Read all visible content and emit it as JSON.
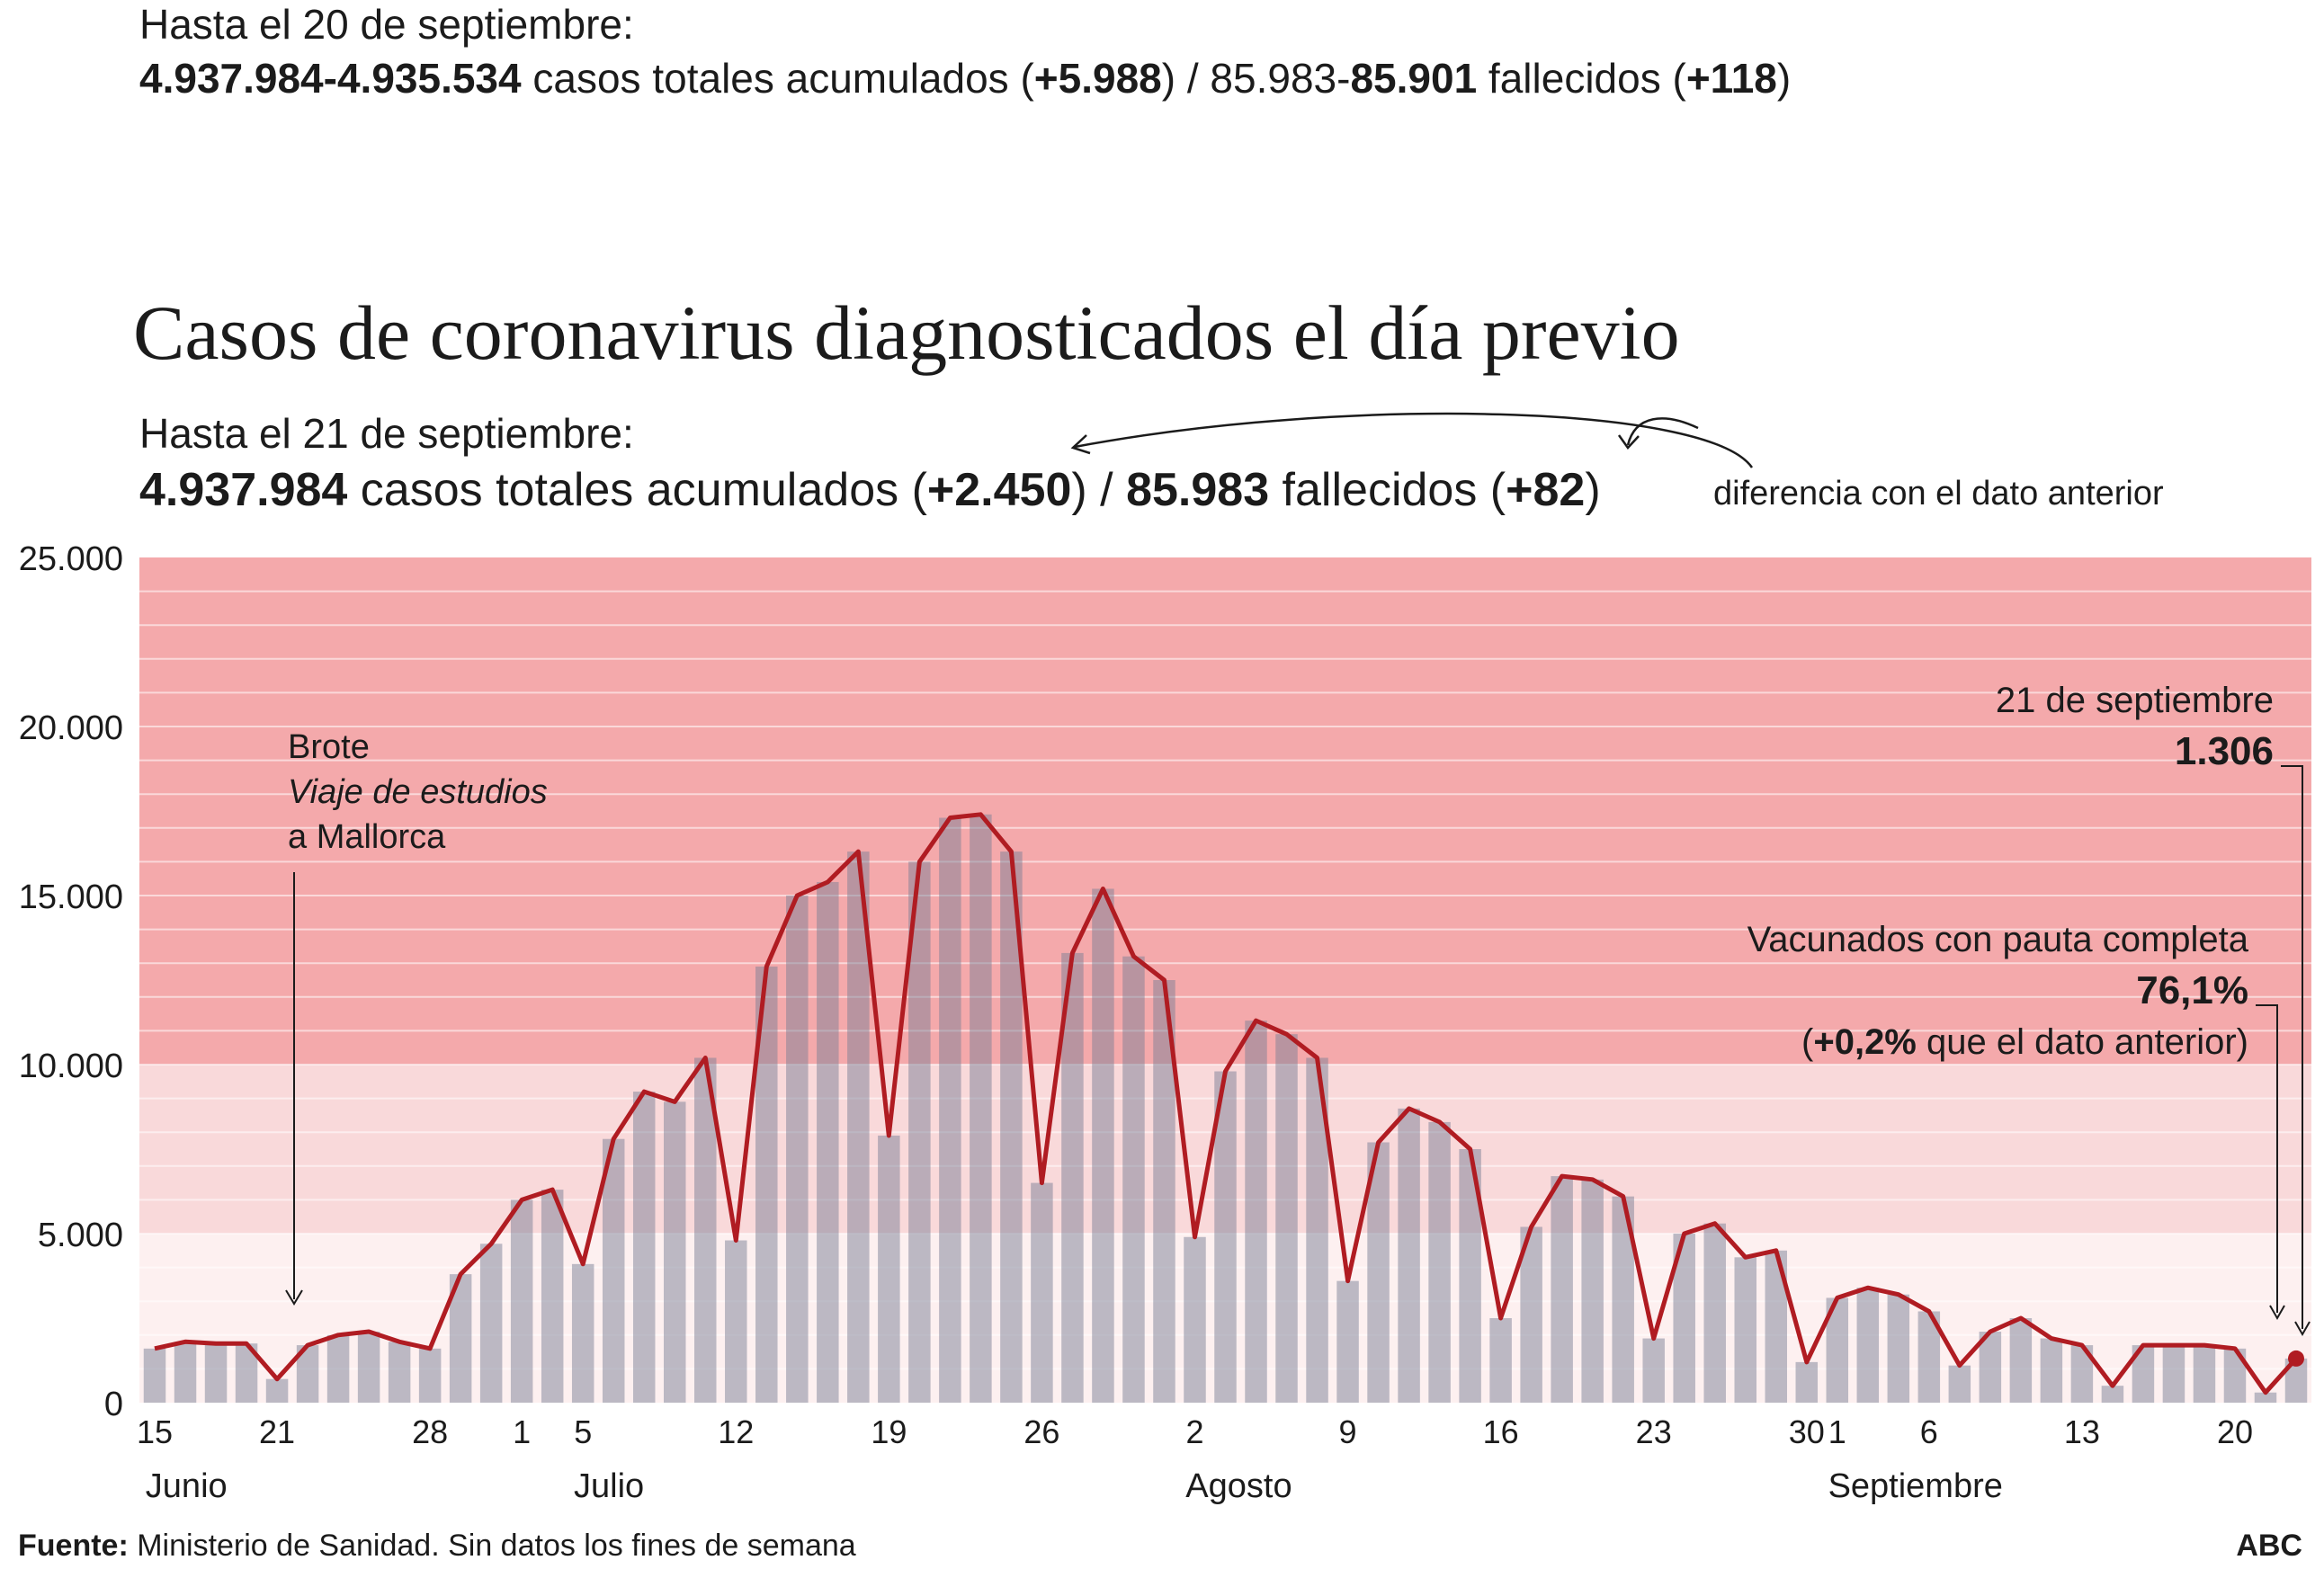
{
  "header_prev": {
    "date": "Hasta el 20 de septiembre:",
    "cases_range": "4.937.984-4.935.534",
    "cases_label": " casos totales acumulados (",
    "cases_diff": "+5.988",
    "sep": ") / 85.983-",
    "deaths": "85.901",
    "deaths_label": " fallecidos (",
    "deaths_diff": "+118",
    "close": ")"
  },
  "title": "Casos de coronavirus diagnosticados el día previo",
  "header_cur": {
    "date": "Hasta el 21 de septiembre:",
    "cases": "4.937.984",
    "cases_label": " casos totales acumulados (",
    "cases_diff": "+2.450",
    "sep": ") / ",
    "deaths": "85.983",
    "deaths_label": " fallecidos (",
    "deaths_diff": "+82",
    "close": ")",
    "diff_note": "diferencia con el dato anterior"
  },
  "annotations": {
    "outbreak_title": "Brote",
    "outbreak_italic": "Viaje de estudios",
    "outbreak_place": "a Mallorca",
    "last_date": "21 de septiembre",
    "last_value": "1.306",
    "vacc_title": "Vacunados con pauta completa",
    "vacc_value": "76,1%",
    "vacc_open": "(",
    "vacc_diff": "+0,2%",
    "vacc_rest": " que el dato anterior)"
  },
  "footer": {
    "source_label": "Fuente:",
    "source_text": " Ministerio de Sanidad. Sin datos los fines de semana",
    "brand": "ABC"
  },
  "colors": {
    "line": "#b01c22",
    "bar": "#7c7f96",
    "band_high": "#f4a9ab",
    "band_mid": "#f9d9da",
    "band_low": "#fdf0f0",
    "marker": "#b01c22"
  },
  "chart_data": {
    "type": "bar",
    "title": "Casos de coronavirus diagnosticados el día previo",
    "ylim": [
      0,
      25000
    ],
    "yticks": [
      {
        "value": 0,
        "label": "0"
      },
      {
        "value": 5000,
        "label": "5.000"
      },
      {
        "value": 10000,
        "label": "10.000"
      },
      {
        "value": 15000,
        "label": "15.000"
      },
      {
        "value": 20000,
        "label": "20.000"
      },
      {
        "value": 25000,
        "label": "25.000"
      }
    ],
    "bands": [
      {
        "from": 0,
        "to": 5000,
        "name": "low"
      },
      {
        "from": 5000,
        "to": 10000,
        "name": "mid"
      },
      {
        "from": 10000,
        "to": 25000,
        "name": "high"
      }
    ],
    "xtick_labels": [
      {
        "index": 0,
        "label": "15"
      },
      {
        "index": 4,
        "label": "21"
      },
      {
        "index": 9,
        "label": "28"
      },
      {
        "index": 12,
        "label": "1"
      },
      {
        "index": 14,
        "label": "5"
      },
      {
        "index": 19,
        "label": "12"
      },
      {
        "index": 24,
        "label": "19"
      },
      {
        "index": 29,
        "label": "26"
      },
      {
        "index": 34,
        "label": "2"
      },
      {
        "index": 39,
        "label": "9"
      },
      {
        "index": 44,
        "label": "16"
      },
      {
        "index": 49,
        "label": "23"
      },
      {
        "index": 54,
        "label": "30"
      },
      {
        "index": 55,
        "label": "1"
      },
      {
        "index": 58,
        "label": "6"
      },
      {
        "index": 63,
        "label": "13"
      },
      {
        "index": 68,
        "label": "20"
      }
    ],
    "month_labels": [
      {
        "index": 0,
        "label": "Junio"
      },
      {
        "index": 14,
        "label": "Julio"
      },
      {
        "index": 34,
        "label": "Agosto"
      },
      {
        "index": 55,
        "label": "Septiembre"
      }
    ],
    "series": [
      {
        "name": "Casos diagnosticados el día previo",
        "dates": [
          "15/6",
          "16/6",
          "17/6",
          "18/6",
          "21/6",
          "22/6",
          "23/6",
          "24/6",
          "25/6",
          "28/6",
          "29/6",
          "30/6",
          "1/7",
          "2/7",
          "5/7",
          "6/7",
          "7/7",
          "8/7",
          "9/7",
          "12/7",
          "13/7",
          "14/7",
          "15/7",
          "16/7",
          "19/7",
          "20/7",
          "21/7",
          "22/7",
          "23/7",
          "26/7",
          "27/7",
          "28/7",
          "29/7",
          "30/7",
          "2/8",
          "3/8",
          "4/8",
          "5/8",
          "6/8",
          "9/8",
          "10/8",
          "11/8",
          "12/8",
          "13/8",
          "16/8",
          "17/8",
          "18/8",
          "19/8",
          "20/8",
          "23/8",
          "24/8",
          "25/8",
          "26/8",
          "27/8",
          "30/8",
          "31/8",
          "1/9",
          "2/9",
          "3/9",
          "6/9",
          "7/9",
          "8/9",
          "9/9",
          "10/9",
          "13/9",
          "14/9",
          "15/9",
          "16/9",
          "17/9",
          "20/9",
          "21/9"
        ],
        "values": [
          1600,
          1800,
          1750,
          1750,
          700,
          1700,
          2000,
          2100,
          1800,
          1600,
          3800,
          4700,
          6000,
          6300,
          4100,
          7800,
          9200,
          8900,
          10200,
          4800,
          12900,
          15000,
          15400,
          16300,
          7900,
          16000,
          17300,
          17400,
          16300,
          6500,
          13300,
          15200,
          13200,
          12500,
          4900,
          9800,
          11300,
          10900,
          10200,
          3600,
          7700,
          8700,
          8300,
          7500,
          2500,
          5200,
          6700,
          6600,
          6100,
          1900,
          5000,
          5300,
          4300,
          4500,
          1200,
          3100,
          3400,
          3200,
          2700,
          1100,
          2100,
          2500,
          1900,
          1700,
          500,
          1700,
          1700,
          1700,
          1600,
          300,
          1306
        ]
      }
    ]
  }
}
